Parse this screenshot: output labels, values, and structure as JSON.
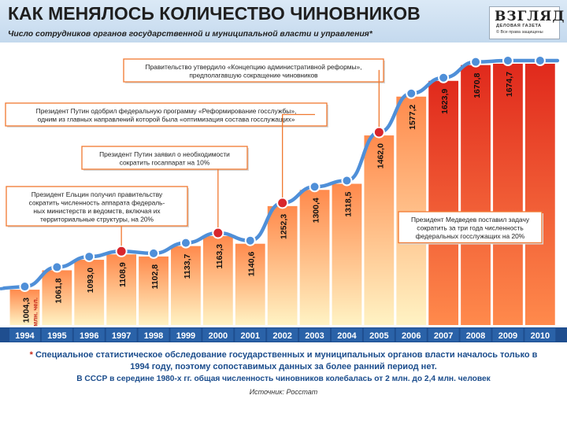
{
  "header": {
    "title": "КАК МЕНЯЛОСЬ КОЛИЧЕСТВО ЧИНОВНИКОВ",
    "subtitle": "Число сотрудников органов государственной и муниципальной власти и управления*"
  },
  "logo": {
    "name": "ВЗГЛЯД",
    "tagline": "ДЕЛОВАЯ ГАЗЕТА",
    "rights": "© Все права защищены"
  },
  "chart_data": {
    "type": "area",
    "title": "КАК МЕНЯЛОСЬ КОЛИЧЕСТВО ЧИНОВНИКОВ",
    "subtitle": "Число сотрудников органов государственной и муниципальной власти и управления*",
    "categories": [
      "1994",
      "1995",
      "1996",
      "1997",
      "1998",
      "1999",
      "2000",
      "2001",
      "2002",
      "2003",
      "2004",
      "2005",
      "2006",
      "2007",
      "2008",
      "2009",
      "2010"
    ],
    "values": [
      1004.3,
      1061.8,
      1093.0,
      1108.9,
      1102.8,
      1133.7,
      1163.3,
      1140.6,
      1252.3,
      1300.4,
      1318.5,
      1462.0,
      1577.2,
      1623.9,
      1670.8,
      1674.7,
      null
    ],
    "value_labels": [
      "1004,3",
      "1061,8",
      "1093,0",
      "1108,9",
      "1102,8",
      "1133,7",
      "1163,3",
      "1140,6",
      "1252,3",
      "1300,4",
      "1318,5",
      "1462,0",
      "1577,2",
      "1623,9",
      "1670,8",
      "1674,7",
      ""
    ],
    "first_value_unit": "млн. чел.",
    "ylabel": "млн. чел.",
    "ylim": [
      950,
      1700
    ],
    "highlighted_years": [
      "1997",
      "2000",
      "2002",
      "2005"
    ],
    "annotations": [
      {
        "year": "1997",
        "text": [
          "Президент Ельцин получил правительству",
          "сократить численность аппарата федераль-",
          "ных министерств и ведомств, включая их",
          "территориальные структуры, на 20%"
        ]
      },
      {
        "year": "2000",
        "text": [
          "Президент Путин заявил о необходимости",
          "сократить госаппарат на 10%"
        ]
      },
      {
        "year": "2002",
        "text": [
          "Президент Путин одобрил федеральную программу «Реформирование госслужбы»,",
          "одним из главных направлений которой была «оптимизация состава госслужащих»"
        ]
      },
      {
        "year": "2005",
        "text": [
          "Правительство утвердило «Концепцию административной реформы»,",
          "предполагавшую сокращение чиновников"
        ]
      },
      {
        "year": "2008",
        "text": [
          "Президент Медведев поставил задачу",
          "сократить за три года численность",
          "федеральных госслужащих на 20%"
        ]
      }
    ]
  },
  "footnotes": {
    "asterisk": "*",
    "line1": "Специальное статистическое обследование государственных и муниципальных органов власти началось только в",
    "line2": "1994 году, поэтому сопоставимых данных за более ранний период нет.",
    "line3": "В СССР в середине 1980-х гг. общая численность чиновников колебалась от 2 млн. до 2,4 млн. человек",
    "source": "Источник: Росстат"
  },
  "colors": {
    "bar_top": "#ff8a4c",
    "bar_bottom": "#fff3c4",
    "bar_red": "#e0291c",
    "line": "#4f8fd8",
    "marker_red": "#d8262c",
    "axis_band": "#1f4e8f",
    "annotation_border": "#f07830",
    "footnote": "#1a4c8c"
  }
}
